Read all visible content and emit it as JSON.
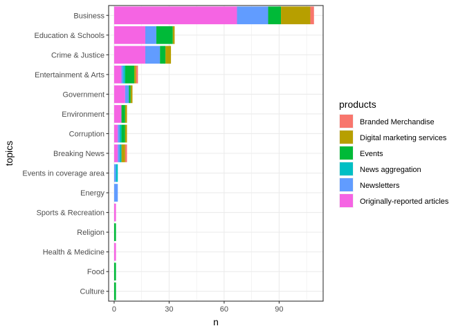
{
  "chart_data": {
    "type": "bar",
    "orientation": "horizontal",
    "stacked": true,
    "xlabel": "n",
    "ylabel": "topics",
    "xlim": [
      -3,
      114
    ],
    "x_ticks": [
      0,
      30,
      60,
      90
    ],
    "grid": true,
    "legend_position": "right",
    "legend_title": "products",
    "categories": [
      "Business",
      "Education & Schools",
      "Crime & Justice",
      "Entertainment & Arts",
      "Government",
      "Environment",
      "Corruption",
      "Breaking News",
      "Events in coverage area",
      "Energy",
      "Sports & Recreation",
      "Religion",
      "Health & Medicine",
      "Food",
      "Culture"
    ],
    "series": [
      {
        "name": "Originally-reported articles",
        "color": "#F564E3",
        "values": [
          67,
          17,
          17,
          4,
          6,
          4,
          2,
          2,
          0,
          0,
          1,
          0,
          1,
          0,
          0
        ]
      },
      {
        "name": "Newsletters",
        "color": "#619CFF",
        "values": [
          17,
          6,
          8,
          1,
          2,
          0,
          1,
          1,
          1,
          2,
          0,
          0,
          0,
          0,
          0
        ]
      },
      {
        "name": "News aggregation",
        "color": "#00BFC4",
        "values": [
          0,
          0,
          0,
          1,
          0,
          0,
          1,
          1,
          1,
          0,
          0,
          0,
          0,
          0,
          0
        ]
      },
      {
        "name": "Events",
        "color": "#00BA38",
        "values": [
          7,
          9,
          3,
          5,
          1,
          2,
          2,
          0,
          0,
          0,
          0,
          1,
          0,
          1,
          1
        ]
      },
      {
        "name": "Digital marketing services",
        "color": "#B79F00",
        "values": [
          16,
          1,
          3,
          1,
          1,
          1,
          1,
          2,
          0,
          0,
          0,
          0,
          0,
          0,
          0
        ]
      },
      {
        "name": "Branded Merchandise",
        "color": "#F8766D",
        "values": [
          2,
          0,
          0,
          1,
          0,
          0,
          0,
          1,
          0,
          0,
          0,
          0,
          0,
          0,
          0
        ]
      }
    ],
    "legend_order": [
      "Branded Merchandise",
      "Digital marketing services",
      "Events",
      "News aggregation",
      "Newsletters",
      "Originally-reported articles"
    ]
  }
}
